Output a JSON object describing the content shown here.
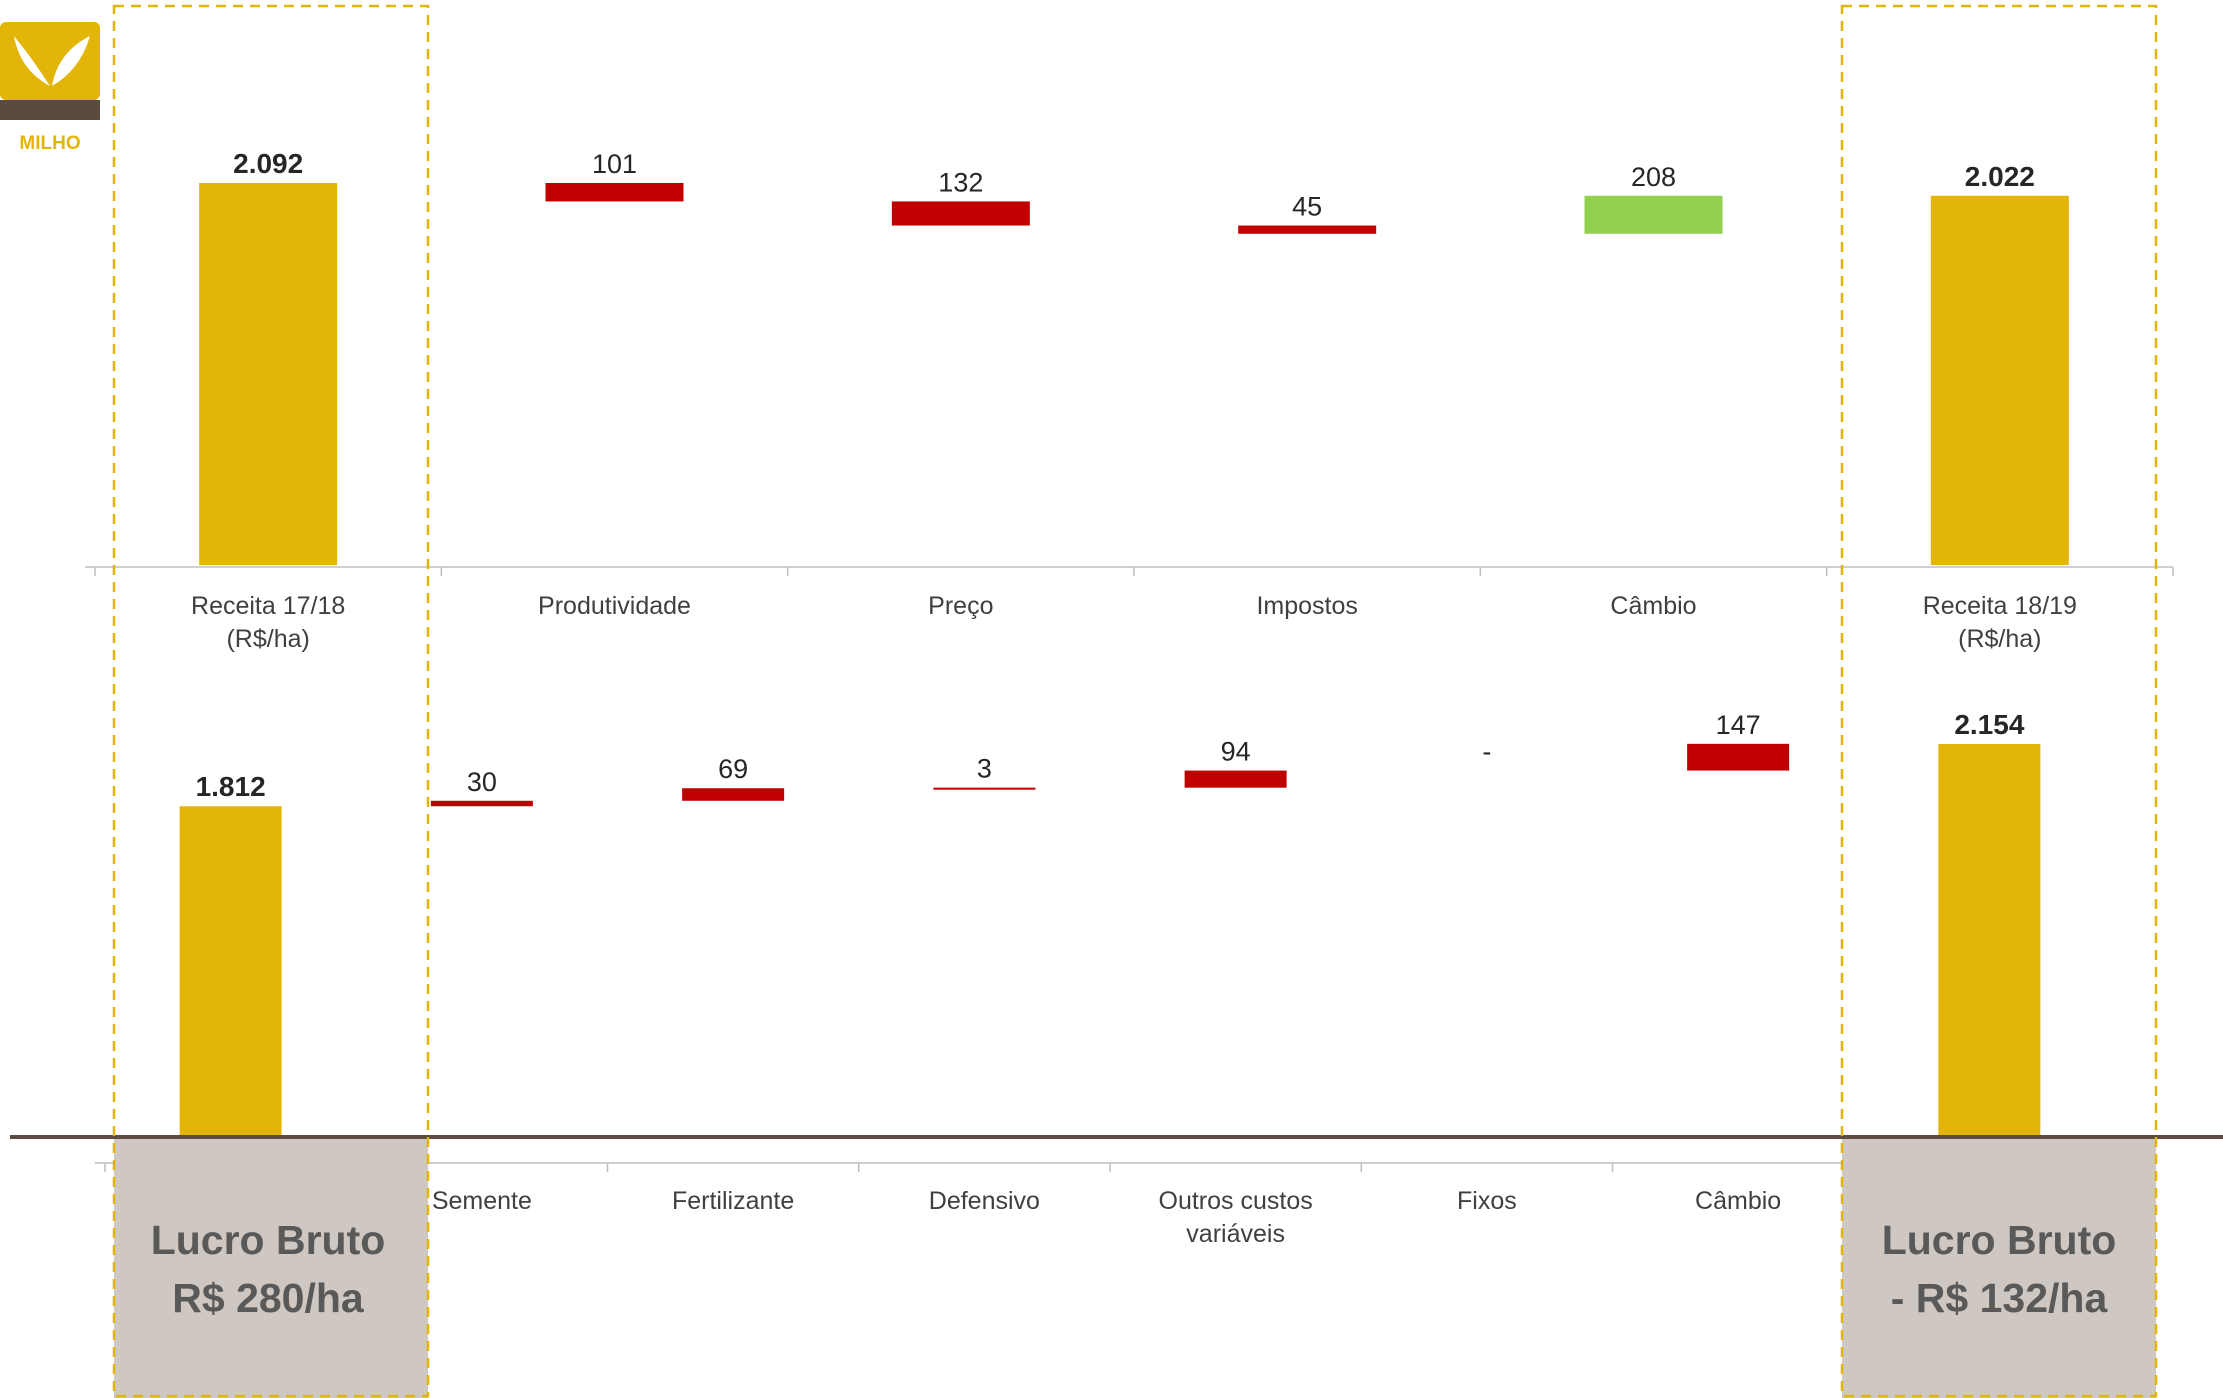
{
  "logo": {
    "label": "MILHO"
  },
  "colors": {
    "gold": "#E3B509",
    "red": "#C00000",
    "green": "#92D050",
    "profit_box": "#CFC8C2",
    "dashed": "#E3B509",
    "baseline": "#5A4A42",
    "logo_dark": "#5B4A40"
  },
  "chart_data": [
    {
      "type": "waterfall",
      "title": "",
      "categories": [
        "Receita 17/18 (R$/ha)",
        "Produtividade",
        "Preço",
        "Impostos",
        "Câmbio",
        "Receita 18/19 (R$/ha)"
      ],
      "values": [
        2092,
        -101,
        -132,
        -45,
        208,
        2022
      ],
      "labels": [
        "2.092",
        "101",
        "132",
        "45",
        "208",
        "2.022"
      ],
      "kinds": [
        "total",
        "decrease",
        "decrease",
        "decrease",
        "increase",
        "total"
      ],
      "ylim": [
        0,
        2092
      ]
    },
    {
      "type": "waterfall",
      "title": "",
      "categories": [
        "",
        "Semente",
        "Fertilizante",
        "Defensivo",
        "Outros custos variáveis",
        "Fixos",
        "Câmbio",
        ""
      ],
      "values": [
        1812,
        30,
        69,
        3,
        94,
        0,
        147,
        2154
      ],
      "labels": [
        "1.812",
        "30",
        "69",
        "3",
        "94",
        "-",
        "147",
        "2.154"
      ],
      "kinds": [
        "total",
        "increase",
        "increase",
        "increase",
        "increase",
        "increase",
        "increase",
        "total"
      ],
      "ylim": [
        0,
        2154
      ]
    }
  ],
  "profit_boxes": [
    {
      "line1": "Lucro Bruto",
      "line2": "R$ 280/ha"
    },
    {
      "line1": "Lucro Bruto",
      "line2": "- R$ 132/ha"
    }
  ]
}
